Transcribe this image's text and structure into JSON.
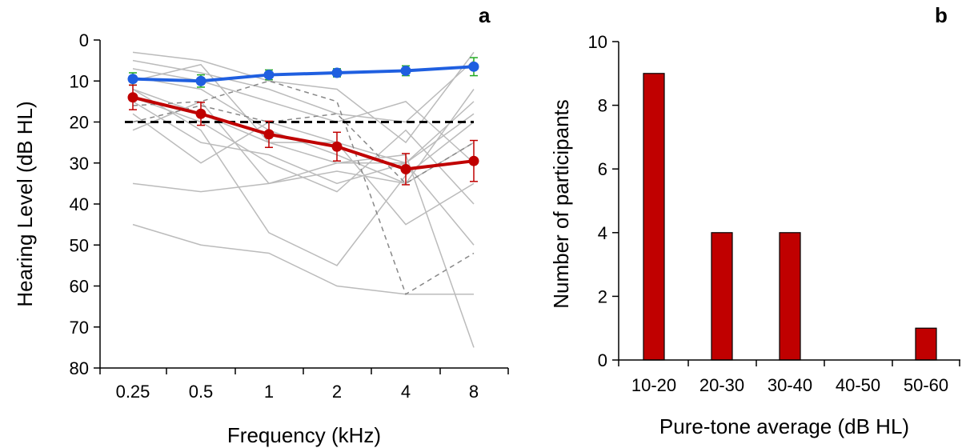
{
  "chart_data": [
    {
      "panel": "a",
      "type": "line",
      "xlabel": "Frequency (kHz)",
      "ylabel": "Hearing Level (dB HL)",
      "categories": [
        "0.25",
        "0.5",
        "1",
        "2",
        "4",
        "8"
      ],
      "y_ticks": [
        "0",
        "10",
        "20",
        "30",
        "40",
        "50",
        "60",
        "70",
        "80"
      ],
      "ylim": [
        0,
        80
      ],
      "y_inverted": true,
      "reference_line": {
        "y": 20,
        "style": "dashed",
        "color": "#000000"
      },
      "series": [
        {
          "values": [
            9.5,
            10,
            8.5,
            8,
            7.5,
            6.5
          ],
          "errors": [
            1.5,
            1.5,
            1.2,
            1.0,
            1.2,
            2.2
          ],
          "color": "#1f5fe0",
          "error_color": "#22aa22"
        },
        {
          "values": [
            14,
            18,
            23,
            26,
            31.5,
            29.5
          ],
          "errors": [
            3,
            2.8,
            3.2,
            3.5,
            3.8,
            5
          ],
          "color": "#c00000",
          "error_color": "#c00000"
        }
      ],
      "individual_lines": {
        "color": "#bbbbbb",
        "solid": [
          [
            3,
            5,
            10,
            12,
            25,
            3
          ],
          [
            5,
            8,
            12,
            18,
            20,
            5
          ],
          [
            7,
            10,
            15,
            20,
            15,
            30
          ],
          [
            9,
            12,
            22,
            28,
            35,
            12
          ],
          [
            12,
            18,
            25,
            30,
            30,
            15
          ],
          [
            14,
            20,
            30,
            37,
            22,
            40
          ],
          [
            15,
            25,
            28,
            35,
            30,
            50
          ],
          [
            18,
            30,
            20,
            25,
            45,
            35
          ],
          [
            22,
            15,
            35,
            30,
            28,
            75
          ],
          [
            35,
            37,
            35,
            32,
            35,
            25
          ],
          [
            45,
            50,
            52,
            60,
            62,
            62
          ],
          [
            12,
            22,
            47,
            55,
            33,
            20
          ],
          [
            10,
            6,
            25,
            25,
            30,
            18
          ]
        ],
        "dashed": [
          [
            16,
            15,
            10,
            15,
            62,
            52
          ],
          [
            20,
            16,
            20,
            18,
            35,
            25
          ]
        ]
      }
    },
    {
      "panel": "b",
      "type": "bar",
      "xlabel": "Pure-tone average (dB HL)",
      "ylabel": "Number of participants",
      "categories": [
        "10-20",
        "20-30",
        "30-40",
        "40-50",
        "50-60"
      ],
      "values": [
        9,
        4,
        4,
        0,
        1
      ],
      "y_ticks": [
        "0",
        "2",
        "4",
        "6",
        "8",
        "10"
      ],
      "ylim": [
        0,
        10
      ],
      "bar_color": "#c00000"
    }
  ]
}
